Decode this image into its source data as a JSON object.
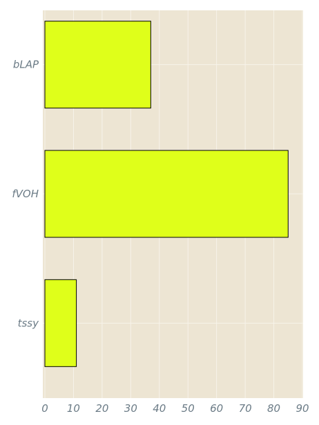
{
  "chart_data": {
    "type": "bar",
    "orientation": "horizontal",
    "categories": [
      "bLAP",
      "fVOH",
      "tssy"
    ],
    "values": [
      37,
      85,
      11
    ],
    "xlim": [
      0,
      90
    ],
    "xticks": [
      0,
      10,
      20,
      30,
      40,
      50,
      60,
      70,
      80,
      90
    ],
    "grid": true,
    "colors": {
      "bar_fill": "#dfff1a",
      "bar_edge": "#000000",
      "plot_background": "#ede5d3",
      "grid": "#f7f3ea",
      "tick_text": "#6b7b86"
    }
  }
}
